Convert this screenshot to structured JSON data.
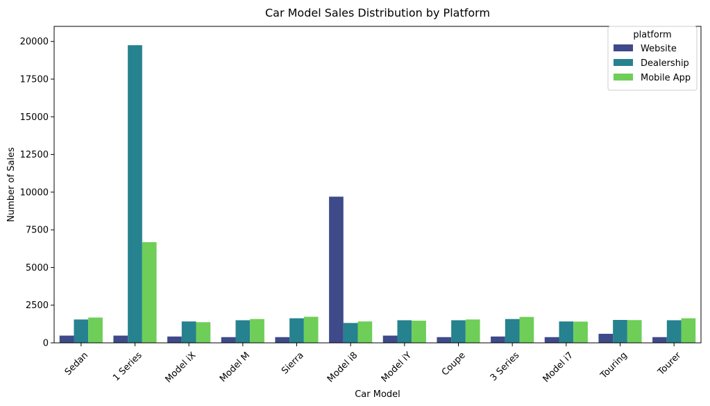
{
  "chart_data": {
    "type": "bar",
    "title": "Car Model Sales Distribution by Platform",
    "xlabel": "Car Model",
    "ylabel": "Number of Sales",
    "ylim": [
      0,
      21000
    ],
    "yticks": [
      0,
      2500,
      5000,
      7500,
      10000,
      12500,
      15000,
      17500,
      20000
    ],
    "categories": [
      "Sedan",
      "1 Series",
      "Model iX",
      "Model M",
      "Sierra",
      "Model i8",
      "Model iY",
      "Coupe",
      "3 Series",
      "Model i7",
      "Touring",
      "Tourer"
    ],
    "series": [
      {
        "name": "Website",
        "color": "#3e4a89",
        "values": [
          480,
          480,
          420,
          380,
          380,
          9700,
          480,
          380,
          420,
          380,
          600,
          380
        ]
      },
      {
        "name": "Dealership",
        "color": "#26828e",
        "values": [
          1550,
          19750,
          1420,
          1500,
          1630,
          1320,
          1500,
          1500,
          1580,
          1420,
          1520,
          1500
        ]
      },
      {
        "name": "Mobile App",
        "color": "#6ece58",
        "values": [
          1680,
          6680,
          1370,
          1580,
          1730,
          1420,
          1470,
          1550,
          1720,
          1410,
          1510,
          1630
        ]
      }
    ],
    "legend": {
      "title": "platform",
      "position": "top-right"
    },
    "grid": false
  }
}
